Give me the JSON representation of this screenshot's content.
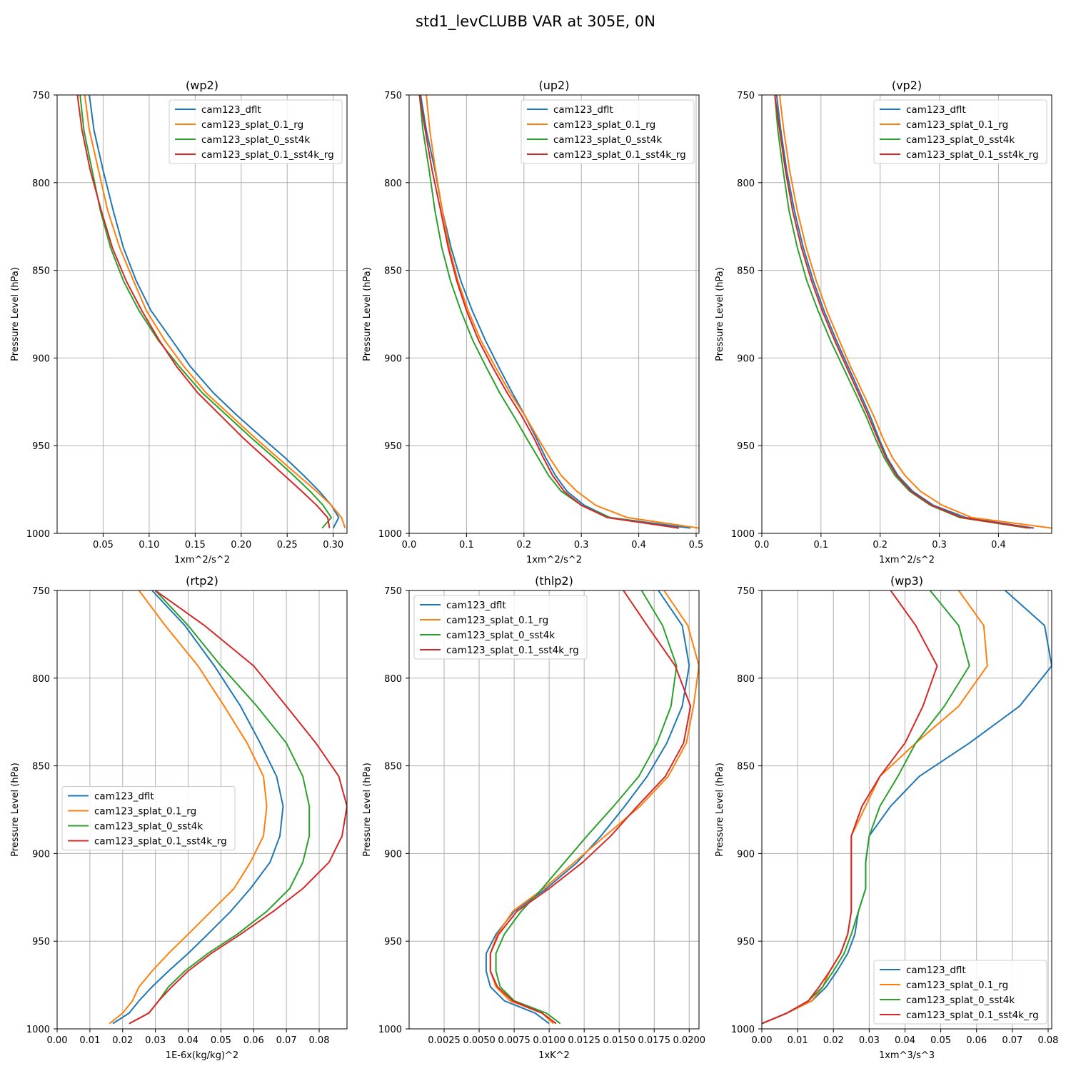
{
  "figure": {
    "title": "std1_levCLUBB VAR at 305E, 0N"
  },
  "colors": {
    "cam123_dflt": "#1f77b4",
    "cam123_splat_0.1_rg": "#ff7f0e",
    "cam123_splat_0_sst4k": "#2ca02c",
    "cam123_splat_0.1_sst4k_rg": "#d62728"
  },
  "chart_data": [
    {
      "type": "line",
      "title": "(wp2)",
      "xlabel": "1xm^2/s^2",
      "ylabel": "Pressure Level (hPa)",
      "xlim": [
        0.0,
        0.315
      ],
      "ylim": [
        1000,
        750
      ],
      "xticks": [
        0.05,
        0.1,
        0.15,
        0.2,
        0.25,
        0.3
      ],
      "xticklabels": [
        "0.05",
        "0.10",
        "0.15",
        "0.20",
        "0.25",
        "0.30"
      ],
      "yticks": [
        750,
        800,
        850,
        900,
        950,
        1000
      ],
      "yticklabels": [
        "750",
        "800",
        "850",
        "900",
        "950",
        "1000"
      ],
      "legend": "upper right",
      "y": [
        750,
        770,
        793,
        816,
        837,
        856,
        873,
        890,
        905,
        920,
        933,
        946,
        957,
        967,
        976,
        984,
        991,
        997
      ],
      "series": [
        {
          "name": "cam123_dflt",
          "values": [
            0.035,
            0.04,
            0.05,
            0.061,
            0.072,
            0.086,
            0.102,
            0.125,
            0.145,
            0.17,
            0.196,
            0.224,
            0.248,
            0.268,
            0.285,
            0.298,
            0.306,
            0.3
          ]
        },
        {
          "name": "cam123_splat_0.1_rg",
          "values": [
            0.03,
            0.035,
            0.045,
            0.055,
            0.068,
            0.083,
            0.097,
            0.117,
            0.138,
            0.162,
            0.189,
            0.216,
            0.24,
            0.262,
            0.282,
            0.298,
            0.309,
            0.313
          ]
        },
        {
          "name": "cam123_splat_0_sst4k",
          "values": [
            0.025,
            0.029,
            0.038,
            0.047,
            0.058,
            0.072,
            0.089,
            0.11,
            0.133,
            0.158,
            0.185,
            0.212,
            0.236,
            0.257,
            0.275,
            0.289,
            0.298,
            0.288
          ]
        },
        {
          "name": "cam123_splat_0.1_sst4k_rg",
          "values": [
            0.022,
            0.027,
            0.036,
            0.048,
            0.06,
            0.075,
            0.092,
            0.111,
            0.13,
            0.153,
            0.178,
            0.203,
            0.226,
            0.247,
            0.266,
            0.282,
            0.294,
            0.296
          ]
        }
      ]
    },
    {
      "type": "line",
      "title": "(up2)",
      "xlabel": "1xm^2/s^2",
      "ylabel": "Pressure Level (hPa)",
      "xlim": [
        0.0,
        0.505
      ],
      "ylim": [
        1000,
        750
      ],
      "xticks": [
        0.0,
        0.1,
        0.2,
        0.3,
        0.4,
        0.5
      ],
      "xticklabels": [
        "0.0",
        "0.1",
        "0.2",
        "0.3",
        "0.4",
        "0.5"
      ],
      "yticks": [
        750,
        800,
        850,
        900,
        950,
        1000
      ],
      "yticklabels": [
        "750",
        "800",
        "850",
        "900",
        "950",
        "1000"
      ],
      "legend": "upper right",
      "y": [
        750,
        770,
        793,
        816,
        837,
        856,
        873,
        890,
        905,
        920,
        933,
        946,
        957,
        967,
        976,
        984,
        991,
        997
      ],
      "series": [
        {
          "name": "cam123_dflt",
          "values": [
            0.02,
            0.03,
            0.045,
            0.058,
            0.073,
            0.09,
            0.11,
            0.133,
            0.156,
            0.18,
            0.202,
            0.222,
            0.238,
            0.255,
            0.275,
            0.305,
            0.35,
            0.49
          ]
        },
        {
          "name": "cam123_splat_0.1_rg",
          "values": [
            0.03,
            0.036,
            0.046,
            0.058,
            0.07,
            0.085,
            0.103,
            0.125,
            0.15,
            0.176,
            0.202,
            0.225,
            0.245,
            0.265,
            0.292,
            0.325,
            0.38,
            0.505
          ]
        },
        {
          "name": "cam123_splat_0_sst4k",
          "values": [
            0.018,
            0.024,
            0.035,
            0.045,
            0.057,
            0.072,
            0.09,
            0.111,
            0.134,
            0.158,
            0.182,
            0.205,
            0.225,
            0.243,
            0.265,
            0.3,
            0.35,
            0.47
          ]
        },
        {
          "name": "cam123_splat_0.1_sst4k_rg",
          "values": [
            0.018,
            0.028,
            0.04,
            0.055,
            0.068,
            0.083,
            0.1,
            0.121,
            0.145,
            0.171,
            0.196,
            0.218,
            0.234,
            0.25,
            0.27,
            0.3,
            0.345,
            0.47
          ]
        }
      ]
    },
    {
      "type": "line",
      "title": "(vp2)",
      "xlabel": "1xm^2/s^2",
      "ylabel": "Pressure Level (hPa)",
      "xlim": [
        0.0,
        0.49
      ],
      "ylim": [
        1000,
        750
      ],
      "xticks": [
        0.0,
        0.1,
        0.2,
        0.3,
        0.4
      ],
      "xticklabels": [
        "0.0",
        "0.1",
        "0.2",
        "0.3",
        "0.4"
      ],
      "yticks": [
        750,
        800,
        850,
        900,
        950,
        1000
      ],
      "yticklabels": [
        "750",
        "800",
        "850",
        "900",
        "950",
        "1000"
      ],
      "legend": "upper right",
      "y": [
        750,
        770,
        793,
        816,
        837,
        856,
        873,
        890,
        905,
        920,
        933,
        946,
        957,
        967,
        976,
        984,
        991,
        997
      ],
      "series": [
        {
          "name": "cam123_dflt",
          "values": [
            0.025,
            0.032,
            0.042,
            0.055,
            0.07,
            0.087,
            0.105,
            0.126,
            0.146,
            0.166,
            0.183,
            0.198,
            0.212,
            0.23,
            0.255,
            0.29,
            0.345,
            0.46
          ]
        },
        {
          "name": "cam123_splat_0.1_rg",
          "values": [
            0.03,
            0.037,
            0.047,
            0.06,
            0.075,
            0.092,
            0.11,
            0.131,
            0.15,
            0.171,
            0.189,
            0.205,
            0.221,
            0.242,
            0.268,
            0.305,
            0.355,
            0.49
          ]
        },
        {
          "name": "cam123_splat_0_sst4k",
          "values": [
            0.022,
            0.027,
            0.036,
            0.046,
            0.06,
            0.076,
            0.095,
            0.116,
            0.137,
            0.158,
            0.176,
            0.192,
            0.207,
            0.225,
            0.25,
            0.285,
            0.335,
            0.45
          ]
        },
        {
          "name": "cam123_splat_0.1_sst4k_rg",
          "values": [
            0.022,
            0.03,
            0.04,
            0.052,
            0.067,
            0.084,
            0.102,
            0.123,
            0.143,
            0.163,
            0.18,
            0.196,
            0.21,
            0.228,
            0.252,
            0.287,
            0.338,
            0.455
          ]
        }
      ]
    },
    {
      "type": "line",
      "title": "(rtp2)",
      "xlabel": "1E-6x(kg/kg)^2",
      "ylabel": "Pressure Level (hPa)",
      "xlim": [
        0.0,
        0.0885
      ],
      "ylim": [
        1000,
        750
      ],
      "xticks": [
        0.0,
        0.01,
        0.02,
        0.03,
        0.04,
        0.05,
        0.06,
        0.07,
        0.08
      ],
      "xticklabels": [
        "0.00",
        "0.01",
        "0.02",
        "0.03",
        "0.04",
        "0.05",
        "0.06",
        "0.07",
        "0.08"
      ],
      "yticks": [
        750,
        800,
        850,
        900,
        950,
        1000
      ],
      "yticklabels": [
        "750",
        "800",
        "850",
        "900",
        "950",
        "1000"
      ],
      "legend": "center left",
      "y": [
        750,
        770,
        793,
        816,
        837,
        856,
        873,
        890,
        905,
        920,
        933,
        946,
        957,
        967,
        976,
        984,
        991,
        997
      ],
      "series": [
        {
          "name": "cam123_dflt",
          "values": [
            0.029,
            0.039,
            0.048,
            0.056,
            0.062,
            0.067,
            0.069,
            0.068,
            0.065,
            0.059,
            0.053,
            0.046,
            0.04,
            0.034,
            0.029,
            0.025,
            0.022,
            0.017
          ]
        },
        {
          "name": "cam123_splat_0.1_rg",
          "values": [
            0.025,
            0.033,
            0.043,
            0.051,
            0.058,
            0.063,
            0.064,
            0.063,
            0.059,
            0.054,
            0.047,
            0.04,
            0.034,
            0.029,
            0.025,
            0.023,
            0.02,
            0.016
          ]
        },
        {
          "name": "cam123_splat_0_sst4k",
          "values": [
            0.03,
            0.04,
            0.05,
            0.061,
            0.07,
            0.075,
            0.077,
            0.077,
            0.075,
            0.071,
            0.064,
            0.055,
            0.046,
            0.039,
            0.034,
            0.031,
            0.028,
            0.022
          ]
        },
        {
          "name": "cam123_splat_0.1_sst4k_rg",
          "values": [
            0.03,
            0.045,
            0.06,
            0.07,
            0.079,
            0.086,
            0.0885,
            0.087,
            0.083,
            0.075,
            0.066,
            0.056,
            0.047,
            0.04,
            0.035,
            0.031,
            0.028,
            0.022
          ]
        }
      ]
    },
    {
      "type": "line",
      "title": "(thlp2)",
      "xlabel": "1xK^2",
      "ylabel": "Pressure Level (hPa)",
      "xlim": [
        0.0,
        0.0207
      ],
      "ylim": [
        1000,
        750
      ],
      "xticks": [
        0.0025,
        0.005,
        0.0075,
        0.01,
        0.0125,
        0.015,
        0.0175,
        0.02
      ],
      "xticklabels": [
        "0.0025",
        "0.0050",
        "0.0075",
        "0.0100",
        "0.0125",
        "0.0150",
        "0.0175",
        "0.0200"
      ],
      "yticks": [
        750,
        800,
        850,
        900,
        950,
        1000
      ],
      "yticklabels": [
        "750",
        "800",
        "850",
        "900",
        "950",
        "1000"
      ],
      "legend": "upper left",
      "y": [
        750,
        770,
        793,
        816,
        837,
        856,
        873,
        890,
        905,
        920,
        933,
        946,
        957,
        967,
        976,
        984,
        991,
        997
      ],
      "series": [
        {
          "name": "cam123_dflt",
          "values": [
            0.0178,
            0.0195,
            0.02,
            0.0195,
            0.0184,
            0.017,
            0.0154,
            0.0137,
            0.012,
            0.0098,
            0.0075,
            0.0062,
            0.0055,
            0.0055,
            0.0058,
            0.0068,
            0.009,
            0.01
          ]
        },
        {
          "name": "cam123_splat_0.1_rg",
          "values": [
            0.0182,
            0.0199,
            0.0207,
            0.0203,
            0.0198,
            0.0185,
            0.0165,
            0.014,
            0.0118,
            0.0096,
            0.0074,
            0.0063,
            0.0058,
            0.0058,
            0.0062,
            0.0072,
            0.0095,
            0.0103
          ]
        },
        {
          "name": "cam123_splat_0_sst4k",
          "values": [
            0.0166,
            0.0181,
            0.0191,
            0.0187,
            0.0177,
            0.0164,
            0.0146,
            0.0127,
            0.0111,
            0.0095,
            0.008,
            0.0068,
            0.0062,
            0.0062,
            0.0065,
            0.0075,
            0.0098,
            0.0108
          ]
        },
        {
          "name": "cam123_splat_0.1_sst4k_rg",
          "values": [
            0.0153,
            0.017,
            0.019,
            0.0201,
            0.0196,
            0.0183,
            0.0163,
            0.0144,
            0.0124,
            0.01,
            0.0077,
            0.0064,
            0.0058,
            0.0058,
            0.0063,
            0.0074,
            0.0095,
            0.0105
          ]
        }
      ]
    },
    {
      "type": "line",
      "title": "(wp3)",
      "xlabel": "1xm^3/s^3",
      "ylabel": "Pressure Level (hPa)",
      "xlim": [
        0.0,
        0.081
      ],
      "ylim": [
        1000,
        750
      ],
      "xticks": [
        0.0,
        0.01,
        0.02,
        0.03,
        0.04,
        0.05,
        0.06,
        0.07,
        0.08
      ],
      "xticklabels": [
        "0.00",
        "0.01",
        "0.02",
        "0.03",
        "0.04",
        "0.05",
        "0.06",
        "0.07",
        "0.08"
      ],
      "yticks": [
        750,
        800,
        850,
        900,
        950,
        1000
      ],
      "yticklabels": [
        "750",
        "800",
        "850",
        "900",
        "950",
        "1000"
      ],
      "legend": "lower right",
      "y": [
        750,
        770,
        793,
        816,
        837,
        856,
        873,
        890,
        905,
        920,
        933,
        946,
        957,
        967,
        976,
        984,
        991,
        997
      ],
      "series": [
        {
          "name": "cam123_dflt",
          "values": [
            0.068,
            0.079,
            0.081,
            0.072,
            0.058,
            0.044,
            0.036,
            0.03,
            0.029,
            0.029,
            0.027,
            0.026,
            0.024,
            0.021,
            0.018,
            0.014,
            0.007,
            0.0
          ]
        },
        {
          "name": "cam123_splat_0.1_rg",
          "values": [
            0.055,
            0.062,
            0.063,
            0.055,
            0.043,
            0.033,
            0.029,
            0.025,
            0.025,
            0.025,
            0.025,
            0.024,
            0.022,
            0.019,
            0.017,
            0.014,
            0.007,
            0.0
          ]
        },
        {
          "name": "cam123_splat_0_sst4k",
          "values": [
            0.047,
            0.055,
            0.058,
            0.051,
            0.043,
            0.038,
            0.033,
            0.03,
            0.029,
            0.029,
            0.027,
            0.025,
            0.023,
            0.02,
            0.017,
            0.013,
            0.007,
            0.0
          ]
        },
        {
          "name": "cam123_splat_0.1_sst4k_rg",
          "values": [
            0.036,
            0.043,
            0.049,
            0.045,
            0.04,
            0.033,
            0.028,
            0.025,
            0.025,
            0.025,
            0.025,
            0.024,
            0.022,
            0.019,
            0.016,
            0.013,
            0.007,
            0.0
          ]
        }
      ]
    }
  ]
}
